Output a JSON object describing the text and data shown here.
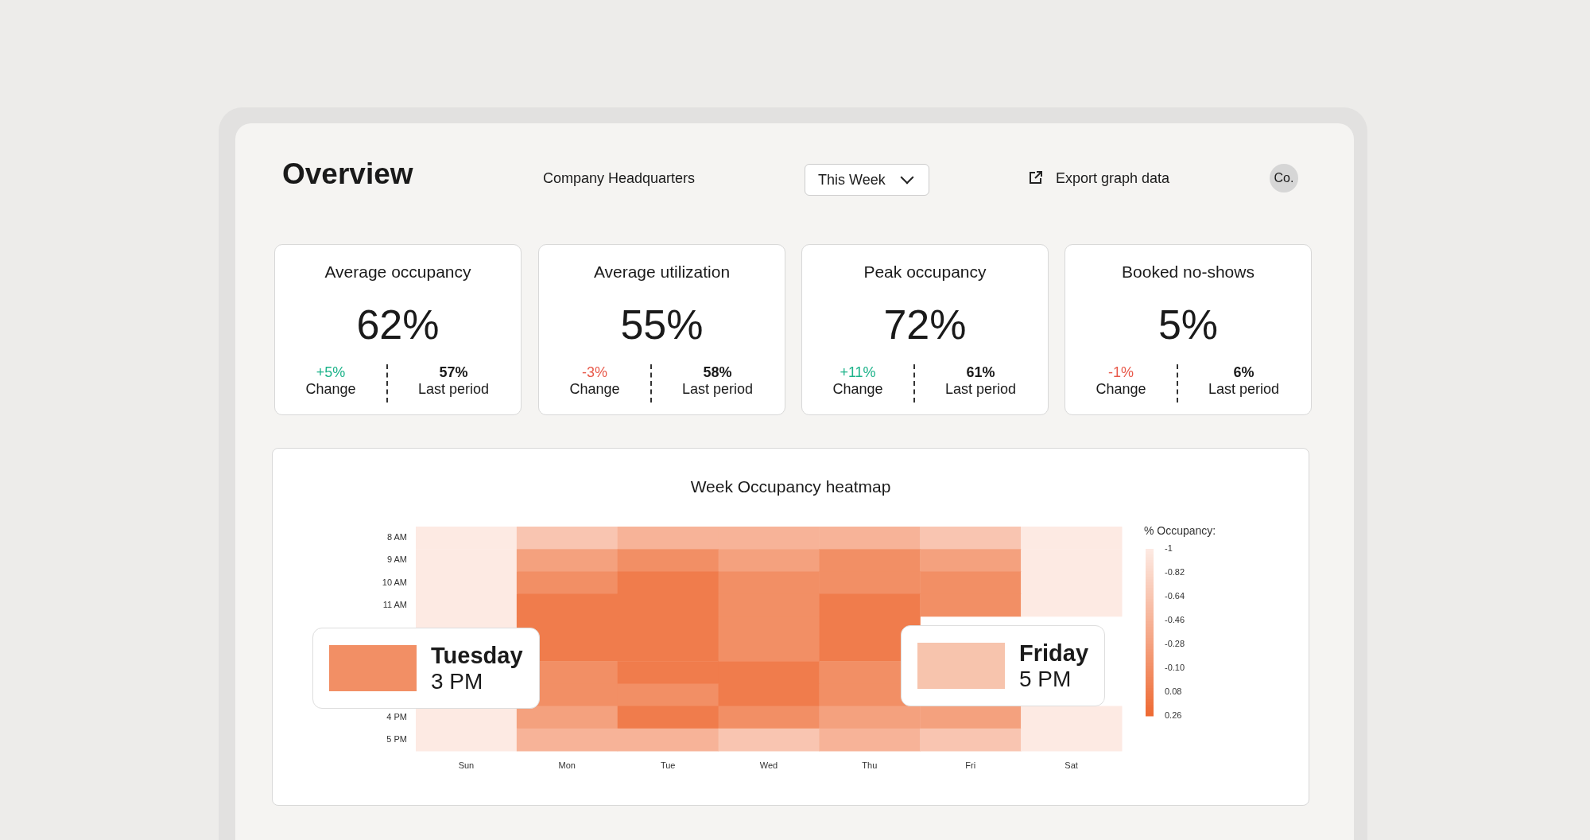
{
  "chart_data": [
    {
      "type": "other",
      "title": "Overview",
      "annotations": [
        "Company Headquarters",
        "This Week",
        "Export graph data",
        "Co."
      ]
    },
    {
      "type": "other",
      "title": "Average occupancy",
      "annotations": [
        "62%",
        "+5%",
        "Change",
        "57%",
        "Last period"
      ],
      "colors": [
        "#1a1a1a",
        "#1db38a",
        "#1a1a1a",
        "#1a1a1a",
        "#1a1a1a"
      ]
    },
    {
      "type": "other",
      "title": "Average utilization",
      "annotations": [
        "55%",
        "-3%",
        "Change",
        "58%",
        "Last period"
      ],
      "colors": [
        "#1a1a1a",
        "#e8594a",
        "#1a1a1a",
        "#1a1a1a",
        "#1a1a1a"
      ]
    },
    {
      "type": "other",
      "title": "Peak occupancy",
      "annotations": [
        "72%",
        "+11%",
        "Change",
        "61%",
        "Last period"
      ],
      "colors": [
        "#1a1a1a",
        "#1db38a",
        "#1a1a1a",
        "#1a1a1a",
        "#1a1a1a"
      ]
    },
    {
      "type": "other",
      "title": "Booked no-shows",
      "annotations": [
        "5%",
        "-1%",
        "Change",
        "6%",
        "Last period"
      ],
      "colors": [
        "#1a1a1a",
        "#e8594a",
        "#1a1a1a",
        "#1a1a1a",
        "#1a1a1a"
      ]
    },
    {
      "type": "heatmap",
      "title": "Week Occupancy heatmap",
      "clabel": "% Occupancy:",
      "categories": [
        "Sun",
        "Mon",
        "Tue",
        "Wed",
        "Thu",
        "Fri",
        "Sat"
      ],
      "y_categories": [
        "8 AM",
        "9 AM",
        "10 AM",
        "11 AM",
        null,
        null,
        null,
        null,
        "4 PM",
        "5 PM"
      ],
      "cells": [
        [
          -1,
          -0.64,
          -0.46,
          -0.46,
          -0.46,
          -0.64,
          -1
        ],
        [
          -1,
          -0.28,
          -0.1,
          -0.28,
          -0.1,
          -0.28,
          -1
        ],
        [
          -1,
          -0.1,
          0.08,
          -0.1,
          -0.1,
          -0.1,
          -1
        ],
        [
          -1,
          0.08,
          0.08,
          -0.1,
          0.08,
          -0.1,
          -1
        ],
        [
          -1,
          0.08,
          0.08,
          -0.1,
          0.08,
          null,
          null
        ],
        [
          null,
          0.08,
          0.08,
          -0.1,
          0.08,
          null,
          null
        ],
        [
          null,
          -0.1,
          0.08,
          0.08,
          -0.1,
          null,
          null
        ],
        [
          null,
          -0.1,
          -0.1,
          0.08,
          -0.1,
          null,
          null
        ],
        [
          -1,
          -0.28,
          0.08,
          -0.1,
          -0.28,
          -0.28,
          -1
        ],
        [
          -1,
          -0.46,
          -0.46,
          -0.64,
          -0.46,
          -0.64,
          -1
        ]
      ],
      "clim": [
        -1,
        0.26
      ],
      "cticks": [
        -1,
        -0.82,
        -0.64,
        -0.46,
        -0.28,
        {
          "value": -0.1,
          "label": "-0.10"
        },
        0.08,
        0.26
      ],
      "annotations": [
        "Tuesday\n3 PM",
        "Friday\n5 PM"
      ]
    }
  ]
}
